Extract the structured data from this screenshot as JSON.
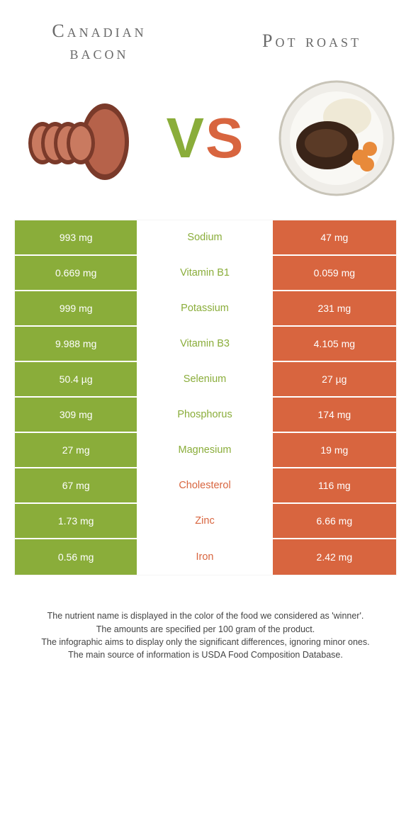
{
  "colors": {
    "green": "#8aad3a",
    "orange": "#d8653f",
    "bg": "#ffffff",
    "title_text": "#6a6a6a"
  },
  "fonts": {
    "title_family": "Georgia",
    "title_size_pt": 20,
    "cell_family": "Verdana",
    "cell_size_pt": 10,
    "vs_size_pt": 60
  },
  "left_food": {
    "name_line1": "Canadian",
    "name_line2": "bacon"
  },
  "right_food": {
    "name": "Pot roast"
  },
  "vs_label": {
    "v": "V",
    "s": "S"
  },
  "rows": [
    {
      "left": "993 mg",
      "label": "Sodium",
      "right": "47 mg",
      "winner": "green"
    },
    {
      "left": "0.669 mg",
      "label": "Vitamin B1",
      "right": "0.059 mg",
      "winner": "green"
    },
    {
      "left": "999 mg",
      "label": "Potassium",
      "right": "231 mg",
      "winner": "green"
    },
    {
      "left": "9.988 mg",
      "label": "Vitamin B3",
      "right": "4.105 mg",
      "winner": "green"
    },
    {
      "left": "50.4 µg",
      "label": "Selenium",
      "right": "27 µg",
      "winner": "green"
    },
    {
      "left": "309 mg",
      "label": "Phosphorus",
      "right": "174 mg",
      "winner": "green"
    },
    {
      "left": "27 mg",
      "label": "Magnesium",
      "right": "19 mg",
      "winner": "green"
    },
    {
      "left": "67 mg",
      "label": "Cholesterol",
      "right": "116 mg",
      "winner": "orange"
    },
    {
      "left": "1.73 mg",
      "label": "Zinc",
      "right": "6.66 mg",
      "winner": "orange"
    },
    {
      "left": "0.56 mg",
      "label": "Iron",
      "right": "2.42 mg",
      "winner": "orange"
    }
  ],
  "footnotes": {
    "line1": "The nutrient name is displayed in the color of the food we considered as 'winner'.",
    "line2": "The amounts are specified per 100 gram of the product.",
    "line3": "The infographic aims to display only the significant differences, ignoring minor ones.",
    "line4": "The main source of information is USDA Food Composition Database."
  }
}
